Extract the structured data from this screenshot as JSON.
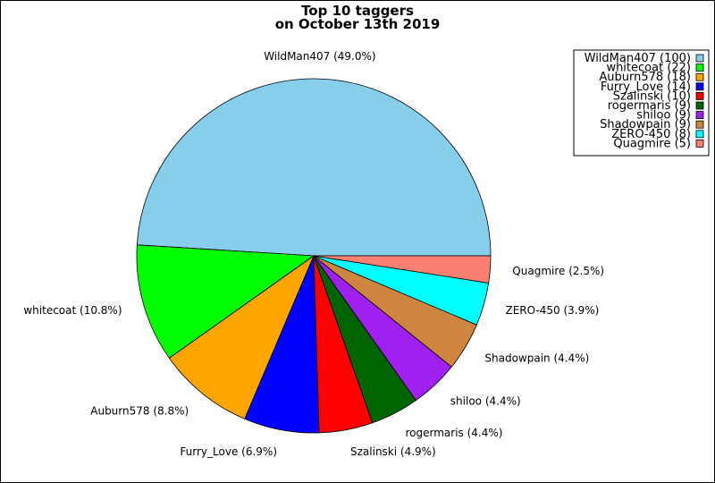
{
  "chart_data": {
    "type": "pie",
    "title_lines": [
      "Top 10 taggers",
      "on October 13th 2019"
    ],
    "slices": [
      {
        "name": "WildMan407",
        "value": 100,
        "percent_label": "WildMan407 (49.0%)",
        "legend_label": "WildMan407 (100)",
        "color": "#87ceeb"
      },
      {
        "name": "whitecoat",
        "value": 22,
        "percent_label": "whitecoat (10.8%)",
        "legend_label": "whitecoat (22)",
        "color": "#00ff00"
      },
      {
        "name": "Auburn578",
        "value": 18,
        "percent_label": "Auburn578 (8.8%)",
        "legend_label": "Auburn578 (18)",
        "color": "#ffa500"
      },
      {
        "name": "Furry_Love",
        "value": 14,
        "percent_label": "Furry_Love (6.9%)",
        "legend_label": "Furry_Love (14)",
        "color": "#0000ff"
      },
      {
        "name": "Szalinski",
        "value": 10,
        "percent_label": "Szalinski (4.9%)",
        "legend_label": "Szalinski (10)",
        "color": "#ff0000"
      },
      {
        "name": "rogermaris",
        "value": 9,
        "percent_label": "rogermaris (4.4%)",
        "legend_label": "rogermaris (9)",
        "color": "#006400"
      },
      {
        "name": "shiloo",
        "value": 9,
        "percent_label": "shiloo (4.4%)",
        "legend_label": "shiloo (9)",
        "color": "#a020f0"
      },
      {
        "name": "Shadowpain",
        "value": 9,
        "percent_label": "Shadowpain (4.4%)",
        "legend_label": "Shadowpain (9)",
        "color": "#cd853f"
      },
      {
        "name": "ZERO-450",
        "value": 8,
        "percent_label": "ZERO-450 (3.9%)",
        "legend_label": "ZERO-450 (8)",
        "color": "#00ffff"
      },
      {
        "name": "Quagmire",
        "value": 5,
        "percent_label": "Quagmire (2.5%)",
        "legend_label": "Quagmire (5)",
        "color": "#fa8072"
      }
    ],
    "start_angle_deg": 0,
    "direction": "counterclockwise",
    "legend_position": "top-right"
  }
}
